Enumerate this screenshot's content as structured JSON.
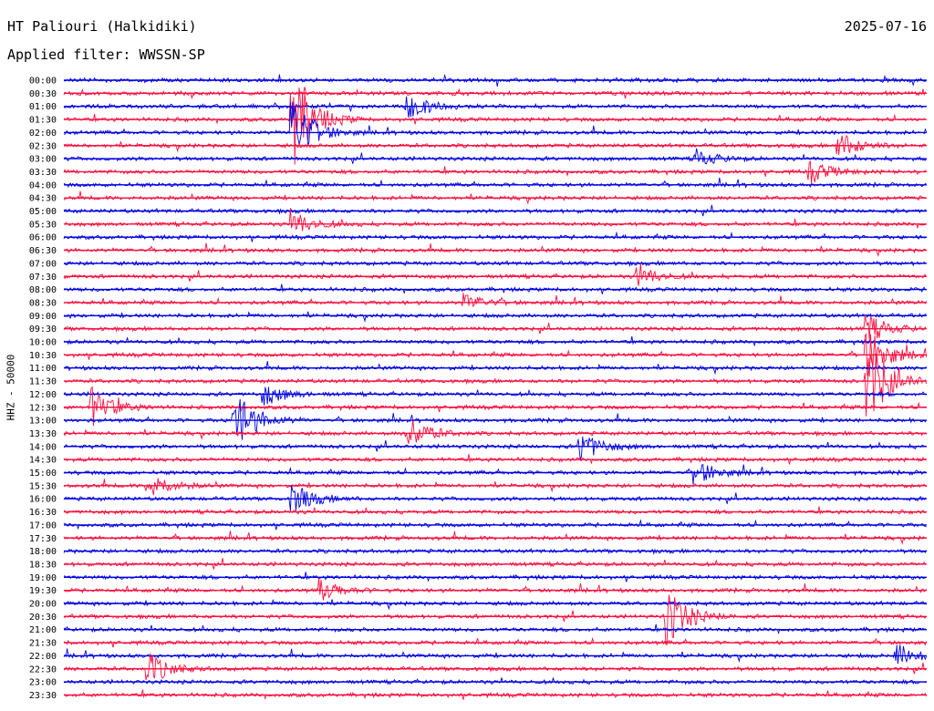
{
  "header": {
    "station_title": "HT Paliouri (Halkidiki)",
    "date": "2025-07-16",
    "filter_label": "Applied filter: WWSSN-SP"
  },
  "colors": {
    "trace_a": "#0000e6",
    "trace_b": "#ff1040"
  },
  "chart_data": {
    "type": "line",
    "title": "HT Paliouri (Halkidiki)",
    "ylabel": "HHZ - 50000",
    "xlabel": "",
    "row_labels": [
      "00:00",
      "00:30",
      "01:00",
      "01:30",
      "02:00",
      "02:30",
      "03:00",
      "03:30",
      "04:00",
      "04:30",
      "05:00",
      "05:30",
      "06:00",
      "06:30",
      "07:00",
      "07:30",
      "08:00",
      "08:30",
      "09:00",
      "09:30",
      "10:00",
      "10:30",
      "11:00",
      "11:30",
      "12:00",
      "12:30",
      "13:00",
      "13:30",
      "14:00",
      "14:30",
      "15:00",
      "15:30",
      "16:00",
      "16:30",
      "17:00",
      "17:30",
      "18:00",
      "18:30",
      "19:00",
      "19:30",
      "20:00",
      "20:30",
      "21:00",
      "21:30",
      "22:00",
      "22:30",
      "23:00",
      "23:30"
    ],
    "row_minutes": 30,
    "alternating_colors": [
      "blue",
      "red"
    ],
    "events": [
      {
        "row": "01:00",
        "minute": 12,
        "amplitude": 0.6
      },
      {
        "row": "01:30",
        "minute": 8,
        "amplitude": 2.2
      },
      {
        "row": "02:00",
        "minute": 8,
        "amplitude": 1.6
      },
      {
        "row": "02:30",
        "minute": 27,
        "amplitude": 0.6
      },
      {
        "row": "03:00",
        "minute": 22,
        "amplitude": 0.4
      },
      {
        "row": "03:30",
        "minute": 26,
        "amplitude": 0.5
      },
      {
        "row": "05:30",
        "minute": 8,
        "amplitude": 0.6
      },
      {
        "row": "07:30",
        "minute": 20,
        "amplitude": 0.5
      },
      {
        "row": "08:30",
        "minute": 14,
        "amplitude": 0.4
      },
      {
        "row": "09:30",
        "minute": 28,
        "amplitude": 0.6
      },
      {
        "row": "10:30",
        "minute": 28,
        "amplitude": 1.2
      },
      {
        "row": "11:30",
        "minute": 28,
        "amplitude": 2.0
      },
      {
        "row": "12:00",
        "minute": 7,
        "amplitude": 0.5
      },
      {
        "row": "12:30",
        "minute": 1,
        "amplitude": 0.9
      },
      {
        "row": "13:00",
        "minute": 6,
        "amplitude": 1.4
      },
      {
        "row": "13:30",
        "minute": 12,
        "amplitude": 0.8
      },
      {
        "row": "14:00",
        "minute": 18,
        "amplitude": 0.7
      },
      {
        "row": "15:00",
        "minute": 22,
        "amplitude": 0.6
      },
      {
        "row": "15:30",
        "minute": 3,
        "amplitude": 0.6
      },
      {
        "row": "16:00",
        "minute": 8,
        "amplitude": 0.7
      },
      {
        "row": "19:30",
        "minute": 9,
        "amplitude": 0.5
      },
      {
        "row": "20:30",
        "minute": 21,
        "amplitude": 1.4
      },
      {
        "row": "22:00",
        "minute": 29,
        "amplitude": 0.5
      },
      {
        "row": "22:30",
        "minute": 3,
        "amplitude": 0.7
      }
    ]
  }
}
